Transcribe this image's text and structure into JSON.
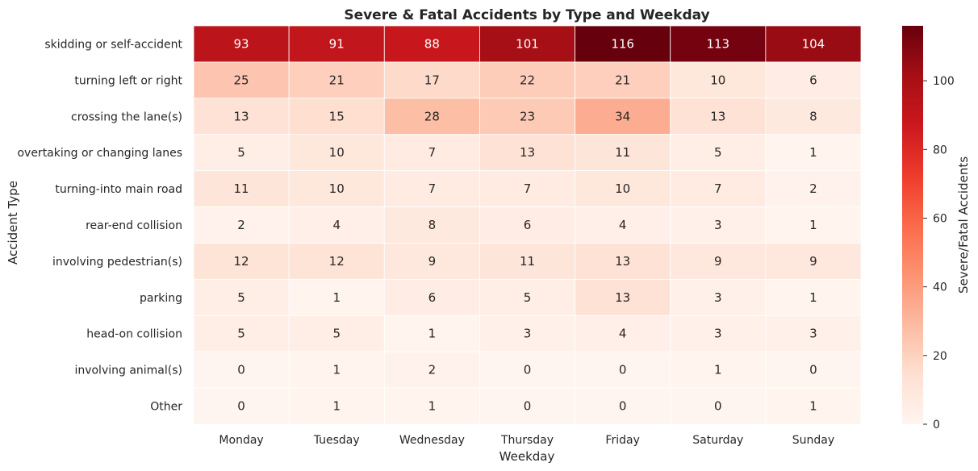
{
  "chart_data": {
    "type": "heatmap",
    "title": "Severe & Fatal Accidents by Type and Weekday",
    "xlabel": "Weekday",
    "ylabel": "Accident Type",
    "x_categories": [
      "Monday",
      "Tuesday",
      "Wednesday",
      "Thursday",
      "Friday",
      "Saturday",
      "Sunday"
    ],
    "y_categories": [
      "skidding or self-accident",
      "turning left or right",
      "crossing the lane(s)",
      "overtaking or changing lanes",
      "turning-into main road",
      "rear-end collision",
      "involving pedestrian(s)",
      "parking",
      "head-on collision",
      "involving animal(s)",
      "Other"
    ],
    "values": [
      [
        93,
        91,
        88,
        101,
        116,
        113,
        104
      ],
      [
        25,
        21,
        17,
        22,
        21,
        10,
        6
      ],
      [
        13,
        15,
        28,
        23,
        34,
        13,
        8
      ],
      [
        5,
        10,
        7,
        13,
        11,
        5,
        1
      ],
      [
        11,
        10,
        7,
        7,
        10,
        7,
        2
      ],
      [
        2,
        4,
        8,
        6,
        4,
        3,
        1
      ],
      [
        12,
        12,
        9,
        11,
        13,
        9,
        9
      ],
      [
        5,
        1,
        6,
        5,
        13,
        3,
        1
      ],
      [
        5,
        5,
        1,
        3,
        4,
        3,
        3
      ],
      [
        0,
        1,
        2,
        0,
        0,
        1,
        0
      ],
      [
        0,
        1,
        1,
        0,
        0,
        0,
        1
      ]
    ],
    "colorscale": "Reds",
    "colorbar": {
      "label": "Severe/Fatal Accidents",
      "range": [
        0,
        116
      ],
      "ticks": [
        0,
        20,
        40,
        60,
        80,
        100
      ]
    },
    "annotate_cells": true
  }
}
